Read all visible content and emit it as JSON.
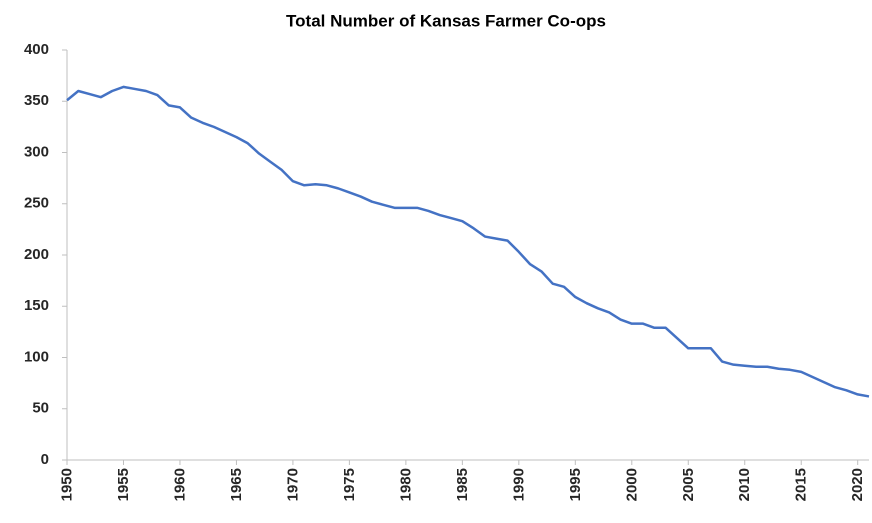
{
  "chart_data": {
    "type": "line",
    "title": "Total Number of Kansas Farmer Co-ops",
    "x": [
      1950,
      1951,
      1952,
      1953,
      1954,
      1955,
      1956,
      1957,
      1958,
      1959,
      1960,
      1961,
      1962,
      1963,
      1964,
      1965,
      1966,
      1967,
      1968,
      1969,
      1970,
      1971,
      1972,
      1973,
      1974,
      1975,
      1976,
      1977,
      1978,
      1979,
      1980,
      1981,
      1982,
      1983,
      1984,
      1985,
      1986,
      1987,
      1988,
      1989,
      1990,
      1991,
      1992,
      1993,
      1994,
      1995,
      1996,
      1997,
      1998,
      1999,
      2000,
      2001,
      2002,
      2003,
      2004,
      2005,
      2006,
      2007,
      2008,
      2009,
      2010,
      2011,
      2012,
      2013,
      2014,
      2015,
      2016,
      2017,
      2018,
      2019,
      2020,
      2021
    ],
    "series": [
      {
        "color": "#4472c4",
        "values": [
          351,
          360,
          357,
          354,
          360,
          364,
          362,
          360,
          356,
          346,
          344,
          334,
          329,
          325,
          320,
          315,
          309,
          299,
          291,
          283,
          272,
          268,
          269,
          268,
          265,
          261,
          257,
          252,
          249,
          246,
          246,
          246,
          243,
          239,
          236,
          233,
          226,
          218,
          216,
          214,
          203,
          191,
          184,
          172,
          169,
          159,
          153,
          148,
          144,
          137,
          133,
          133,
          129,
          129,
          119,
          109,
          109,
          109,
          96,
          93,
          92,
          91,
          91,
          89,
          88,
          86,
          81,
          76,
          71,
          68,
          64,
          62
        ]
      }
    ],
    "xlim": [
      1950,
      2021
    ],
    "xticks": [
      1950,
      1955,
      1960,
      1965,
      1970,
      1975,
      1980,
      1985,
      1990,
      1995,
      2000,
      2005,
      2010,
      2015,
      2020
    ],
    "ylim": [
      0,
      400
    ],
    "yticks": [
      0,
      50,
      100,
      150,
      200,
      250,
      300,
      350,
      400
    ]
  }
}
